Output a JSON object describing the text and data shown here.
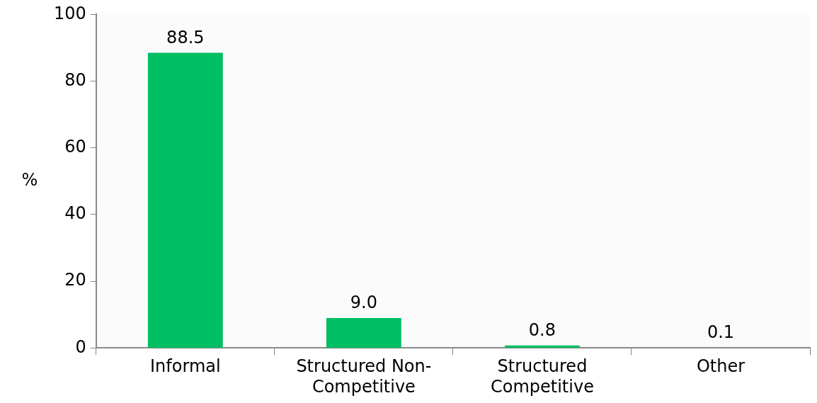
{
  "chart_data": {
    "type": "bar",
    "ylabel": "%",
    "categories": [
      "Informal",
      "Structured Non-Competitive",
      "Structured Competitive",
      "Other"
    ],
    "values": [
      88.5,
      9.0,
      0.8,
      0.1
    ],
    "value_labels": [
      "88.5",
      "9.0",
      "0.8",
      "0.1"
    ],
    "color": "#00bf63",
    "ylim": [
      0,
      100
    ],
    "yticks": [
      0,
      20,
      40,
      60,
      80,
      100
    ],
    "grid": false,
    "legend": false
  }
}
